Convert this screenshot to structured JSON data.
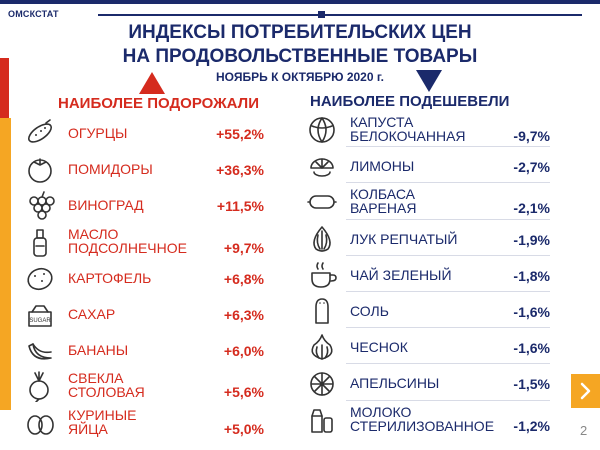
{
  "header": {
    "org": "ОМСКСТАТ",
    "title_line1": "ИНДЕКСЫ ПОТРЕБИТЕЛЬСКИХ ЦЕН",
    "title_line2": "НА ПРОДОВОЛЬСТВЕННЫЕ ТОВАРЫ",
    "subtitle": "НОЯБРЬ К ОКТЯБРЮ 2020 г."
  },
  "left": {
    "heading": "НАИБОЛЕЕ ПОДОРОЖАЛИ",
    "items": [
      {
        "name1": "ОГУРЦЫ",
        "name2": "",
        "value": "+55,2%",
        "icon": "cucumber-icon"
      },
      {
        "name1": "ПОМИДОРЫ",
        "name2": "",
        "value": "+36,3%",
        "icon": "tomato-icon"
      },
      {
        "name1": "ВИНОГРАД",
        "name2": "",
        "value": "+11,5%",
        "icon": "grapes-icon"
      },
      {
        "name1": "МАСЛО",
        "name2": "ПОДСОЛНЕЧНОЕ",
        "value": "+9,7%",
        "icon": "oil-bottle-icon"
      },
      {
        "name1": "КАРТОФЕЛЬ",
        "name2": "",
        "value": "+6,8%",
        "icon": "potato-icon"
      },
      {
        "name1": "САХАР",
        "name2": "",
        "value": "+6,3%",
        "icon": "sugar-icon"
      },
      {
        "name1": "БАНАНЫ",
        "name2": "",
        "value": "+6,0%",
        "icon": "bananas-icon"
      },
      {
        "name1": "СВЕКЛА",
        "name2": "СТОЛОВАЯ",
        "value": "+5,6%",
        "icon": "beet-icon"
      },
      {
        "name1": "КУРИНЫЕ",
        "name2": "ЯЙЦА",
        "value": "+5,0%",
        "icon": "eggs-icon"
      }
    ]
  },
  "right": {
    "heading": "НАИБОЛЕЕ ПОДЕШЕВЕЛИ",
    "items": [
      {
        "name1": "КАПУСТА",
        "name2": "БЕЛОКОЧАННАЯ",
        "value": "-9,7%",
        "icon": "cabbage-icon"
      },
      {
        "name1": "ЛИМОНЫ",
        "name2": "",
        "value": "-2,7%",
        "icon": "lemon-icon"
      },
      {
        "name1": "КОЛБАСА",
        "name2": "ВАРЕНАЯ",
        "value": "-2,1%",
        "icon": "sausage-icon"
      },
      {
        "name1": "ЛУК РЕПЧАТЫЙ",
        "name2": "",
        "value": "-1,9%",
        "icon": "onion-icon"
      },
      {
        "name1": "ЧАЙ ЗЕЛЕНЫЙ",
        "name2": "",
        "value": "-1,8%",
        "icon": "tea-icon"
      },
      {
        "name1": "СОЛЬ",
        "name2": "",
        "value": "-1,6%",
        "icon": "salt-shaker-icon"
      },
      {
        "name1": "ЧЕСНОК",
        "name2": "",
        "value": "-1,6%",
        "icon": "garlic-icon"
      },
      {
        "name1": "АПЕЛЬСИНЫ",
        "name2": "",
        "value": "-1,5%",
        "icon": "orange-icon"
      },
      {
        "name1": "МОЛОКО",
        "name2": "СТЕРИЛИЗОВАННОЕ",
        "value": "-1,2%",
        "icon": "milk-icon"
      }
    ]
  },
  "page_number": "2",
  "colors": {
    "red": "#d52b1e",
    "navy": "#1b2a6b",
    "orange": "#f5a623"
  }
}
